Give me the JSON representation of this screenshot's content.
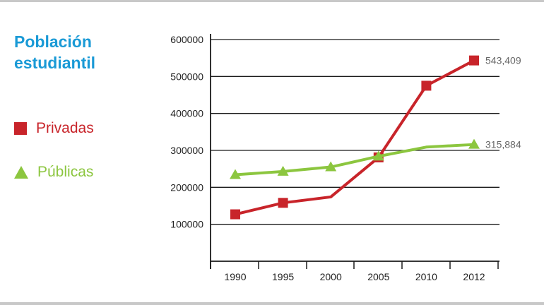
{
  "chart_data": {
    "type": "line",
    "title": "Población estudiantil",
    "xlabel": "",
    "ylabel": "",
    "categories": [
      "1990",
      "1995",
      "2000",
      "2005",
      "2010",
      "2012"
    ],
    "ylim": [
      0,
      600000
    ],
    "yticks": [
      "100000",
      "200000",
      "300000",
      "400000",
      "500000",
      "600000"
    ],
    "grid": true,
    "legend_position": "left",
    "series": [
      {
        "name": "Privadas",
        "marker": "square",
        "color": "#c8242a",
        "values": [
          127000,
          158000,
          174000,
          281000,
          475000,
          543409
        ],
        "point_markers": [
          true,
          true,
          false,
          true,
          true,
          true
        ],
        "end_label": "543,409"
      },
      {
        "name": "Públicas",
        "marker": "triangle",
        "color": "#8cc63f",
        "values": [
          234000,
          243000,
          255000,
          284000,
          309000,
          315884
        ],
        "point_markers": [
          true,
          true,
          true,
          true,
          false,
          true
        ],
        "end_label": "315,884"
      }
    ]
  }
}
